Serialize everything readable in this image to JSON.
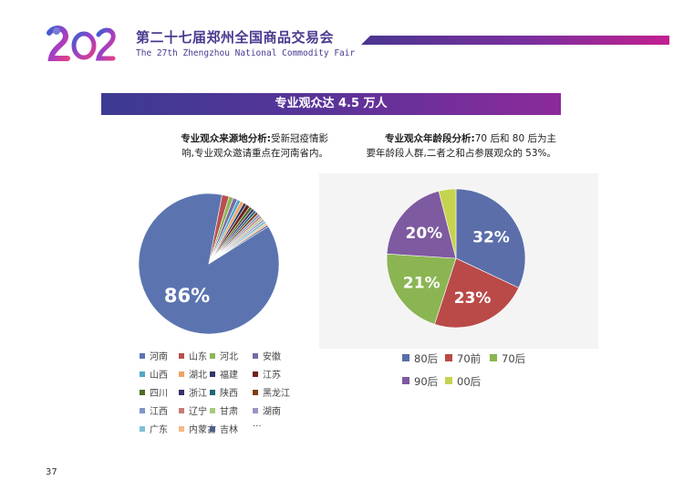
{
  "header": {
    "title": "第二十七届郑州全国商品交易会",
    "subtitle": "The 27th Zhengzhou National Commodity Fair"
  },
  "banner": "专业观众达 4.5 万人",
  "notes": {
    "left_label": "专业观众来源地分析:",
    "left_text_1": "受新冠疫情影",
    "left_text_2": "响,专业观众邀请重点在河南省内。",
    "right_label": "专业观众年龄段分析:",
    "right_text_1": "70 后和 80 后为主",
    "right_text_2": "要年龄段人群,二者之和占参展观众的 53%。"
  },
  "page_number": "37",
  "chart_data": [
    {
      "type": "pie",
      "categories": [
        "河南",
        "山东",
        "河北",
        "安徽",
        "山西",
        "湖北",
        "福建",
        "江苏",
        "四川",
        "浙江",
        "陕西",
        "黑龙江",
        "江西",
        "辽宁",
        "甘肃",
        "湖南",
        "广东",
        "内蒙古",
        "吉林"
      ],
      "values": [
        86,
        1.6,
        1.0,
        1.0,
        0.8,
        0.8,
        0.7,
        0.9,
        0.7,
        0.6,
        0.6,
        0.6,
        0.6,
        0.5,
        0.5,
        0.5,
        0.6,
        0.5,
        0.4
      ],
      "colors": [
        "#5b74b0",
        "#b9504f",
        "#8db556",
        "#7a6aa9",
        "#4fa8c5",
        "#f0a262",
        "#2e3a63",
        "#6e2521",
        "#4d6b22",
        "#3d2d6a",
        "#246479",
        "#7f3e0c",
        "#7f95c7",
        "#c77a78",
        "#a7c980",
        "#a093c2",
        "#7dc0d6",
        "#f5b985",
        "#4f5e8c"
      ],
      "data_labels": [
        "86%"
      ],
      "legend_extra": "···"
    },
    {
      "type": "pie",
      "categories": [
        "80后",
        "70前",
        "70后",
        "90后",
        "00后"
      ],
      "values": [
        32,
        23,
        21,
        20,
        4
      ],
      "colors": [
        "#5b6ea9",
        "#b94a48",
        "#8bb553",
        "#7e5aa0",
        "#c5d44e"
      ],
      "data_labels": [
        "32%",
        "23%",
        "21%",
        "20%",
        ""
      ]
    }
  ]
}
